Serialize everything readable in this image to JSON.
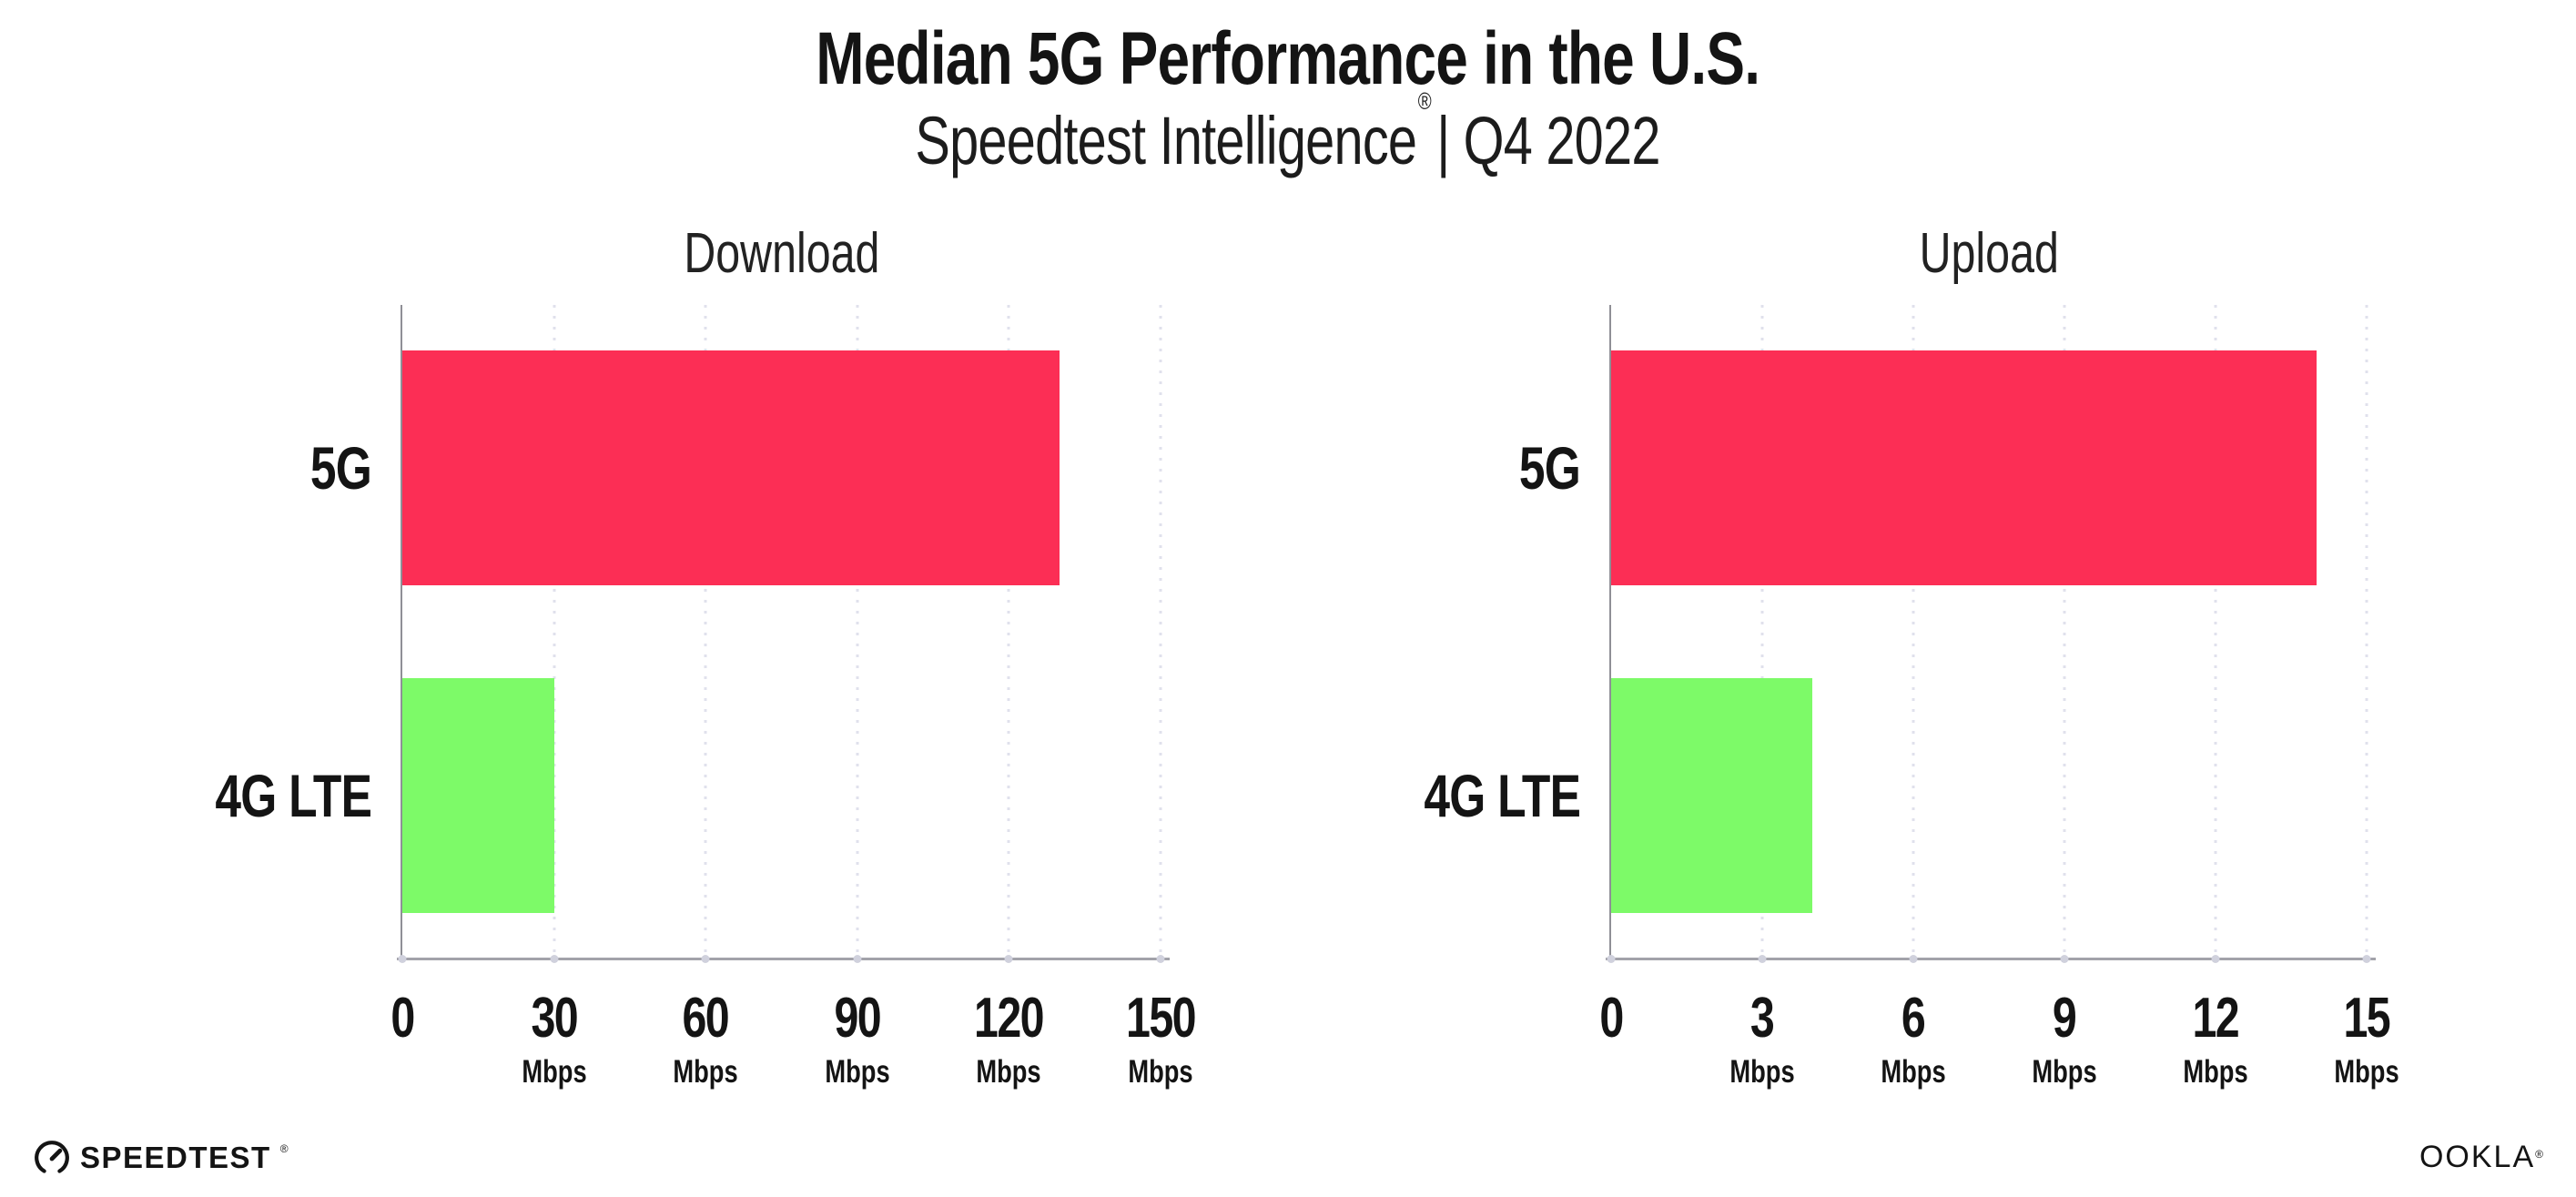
{
  "header": {
    "title": "Median 5G Performance in the U.S.",
    "subtitle_brand": "Speedtest Intelligence",
    "subtitle_reg": "®",
    "subtitle_rest": "| Q4 2022"
  },
  "colors": {
    "bar_5g": "#fc2e55",
    "bar_4g_lte": "#7dfa68",
    "axis": "#a2a2aa",
    "gridline_dots": "#e0e1ec",
    "text": "#141414"
  },
  "chart_data": [
    {
      "type": "bar",
      "orientation": "horizontal",
      "title": "Download",
      "categories": [
        "5G",
        "4G LTE"
      ],
      "values": [
        130,
        30
      ],
      "bar_colors": [
        "#fc2e55",
        "#7dfa68"
      ],
      "unit": "Mbps",
      "xlim": [
        0,
        150
      ],
      "xticks": [
        0,
        30,
        60,
        90,
        120,
        150
      ],
      "tick_unit": "Mbps",
      "grid": "dotted-vertical",
      "legend": "none"
    },
    {
      "type": "bar",
      "orientation": "horizontal",
      "title": "Upload",
      "categories": [
        "5G",
        "4G LTE"
      ],
      "values": [
        14,
        4
      ],
      "bar_colors": [
        "#fc2e55",
        "#7dfa68"
      ],
      "unit": "Mbps",
      "xlim": [
        0,
        15
      ],
      "xticks": [
        0,
        3,
        6,
        9,
        12,
        15
      ],
      "tick_unit": "Mbps",
      "grid": "dotted-vertical",
      "legend": "none"
    }
  ],
  "footer": {
    "speedtest_label": "SPEEDTEST",
    "speedtest_reg": "®",
    "ookla_label": "OOKLA",
    "ookla_reg": "®"
  }
}
